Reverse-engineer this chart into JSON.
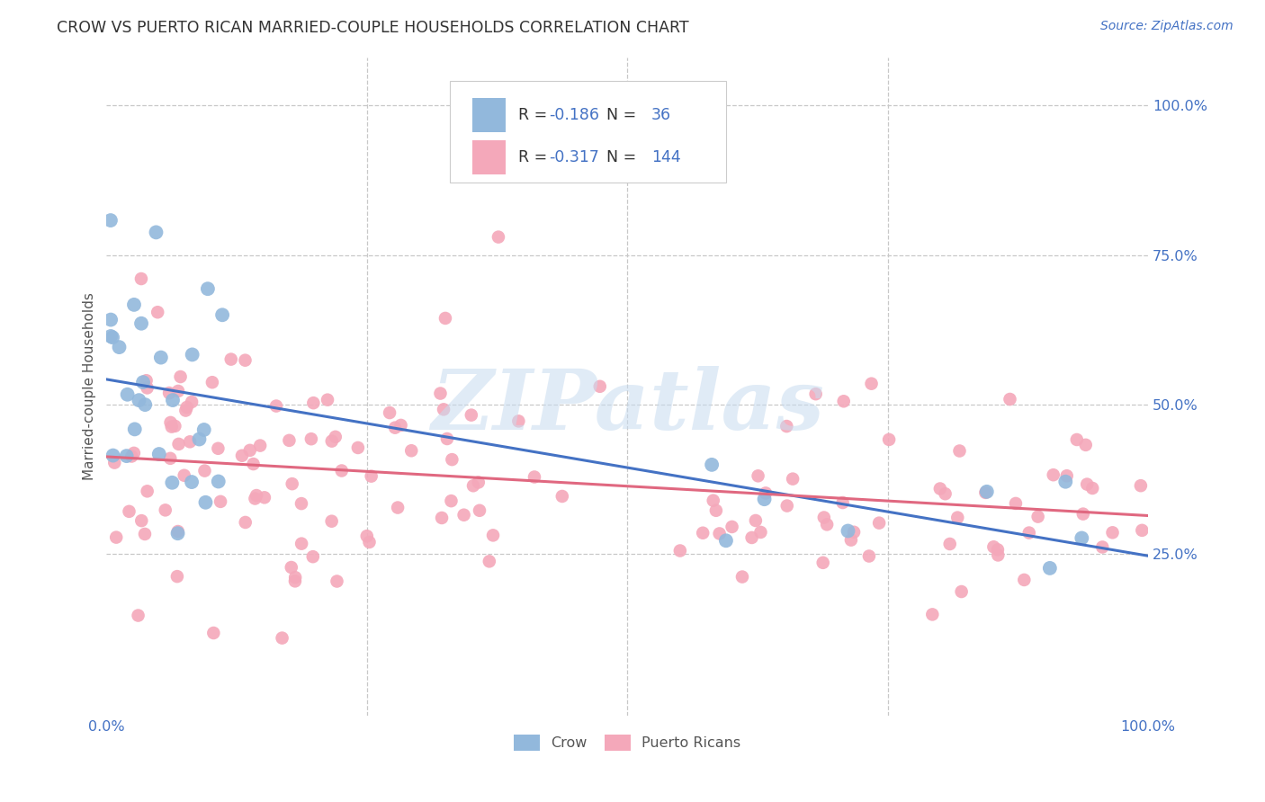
{
  "title": "CROW VS PUERTO RICAN MARRIED-COUPLE HOUSEHOLDS CORRELATION CHART",
  "source": "Source: ZipAtlas.com",
  "ylabel": "Married-couple Households",
  "yticks_labels": [
    "25.0%",
    "50.0%",
    "75.0%",
    "100.0%"
  ],
  "ytick_vals": [
    0.25,
    0.5,
    0.75,
    1.0
  ],
  "xlim": [
    0.0,
    1.0
  ],
  "ylim": [
    -0.02,
    1.08
  ],
  "crow_R": -0.186,
  "crow_N": 36,
  "pr_R": -0.317,
  "pr_N": 144,
  "crow_color": "#92B8DC",
  "pr_color": "#F4A8BA",
  "crow_line_color": "#4472C4",
  "pr_line_color": "#E06880",
  "watermark_text": "ZIPatlas",
  "background_color": "#FFFFFF",
  "grid_color": "#C8C8C8",
  "title_color": "#333333",
  "source_color": "#4472C4",
  "axis_tick_color": "#4472C4",
  "legend_label_crow": "Crow",
  "legend_label_pr": "Puerto Ricans",
  "legend_text_color": "#333333",
  "legend_num_color": "#4472C4"
}
